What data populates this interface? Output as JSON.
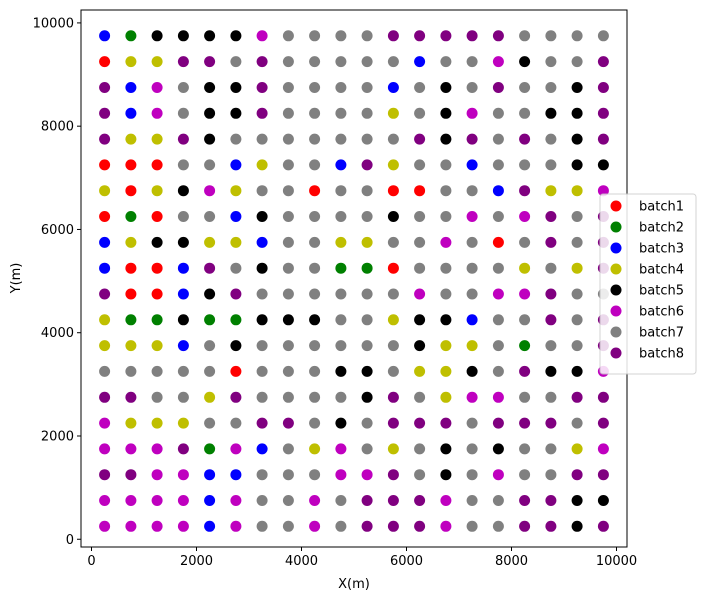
{
  "chart_data": {
    "type": "scatter",
    "title": "",
    "xlabel": "X(m)",
    "ylabel": "Y(m)",
    "xlim": [
      -200,
      10200
    ],
    "ylim": [
      -150,
      10250
    ],
    "xticks": [
      0,
      2000,
      4000,
      6000,
      8000,
      10000
    ],
    "yticks": [
      0,
      2000,
      4000,
      6000,
      8000,
      10000
    ],
    "grid": false,
    "legend_position": "center-right",
    "x": [
      250,
      750,
      1250,
      1750,
      2250,
      2750,
      3250,
      3750,
      4250,
      4750,
      5250,
      5750,
      6250,
      6750,
      7250,
      7750,
      8250,
      8750,
      9250,
      9750
    ],
    "y": [
      250,
      750,
      1250,
      1750,
      2250,
      2750,
      3250,
      3750,
      4250,
      4750,
      5250,
      5750,
      6250,
      6750,
      7250,
      7750,
      8250,
      8750,
      9250,
      9750
    ],
    "series": [
      {
        "name": "batch1",
        "color": "#ff0000"
      },
      {
        "name": "batch2",
        "color": "#008000"
      },
      {
        "name": "batch3",
        "color": "#0000ff"
      },
      {
        "name": "batch4",
        "color": "#bfbf00"
      },
      {
        "name": "batch5",
        "color": "#000000"
      },
      {
        "name": "batch6",
        "color": "#bf00bf"
      },
      {
        "name": "batch7",
        "color": "#808080"
      },
      {
        "name": "batch8",
        "color": "#800080"
      }
    ],
    "grid_batches": [
      "32555567777888887777",
      "14488787777737765778",
      "83675587777375787758",
      "83675587777475677558",
      "84485777777785878758",
      "11177347738477377755",
      "41456477177117738446",
      "12177357777577676878",
      "34554437744776717878",
      "31138757722177774748",
      "81135877777767766877",
      "42252255577455377878",
      "44437577777754472778",
      "77777177755744578556",
      "88774877775874667788",
      "64447788757888788878",
      "66682637467475757746",
      "88663377766875767788",
      "66663677678886778855",
      "66663677678886778858"
    ]
  }
}
